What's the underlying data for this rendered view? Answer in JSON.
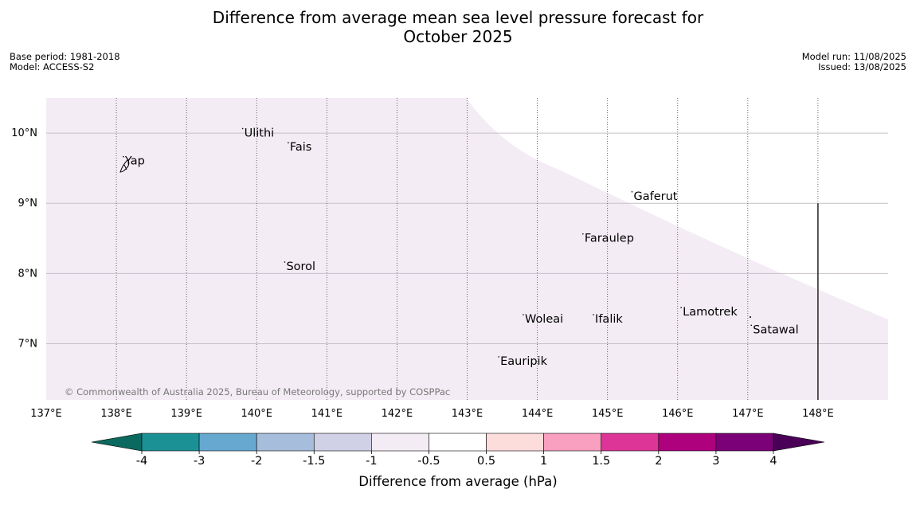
{
  "title": {
    "line1": "Difference from average mean sea level pressure forecast for",
    "line2": "October 2025"
  },
  "meta": {
    "base_period": "Base period: 1981-2018",
    "model": "Model: ACCESS-S2",
    "model_run": "Model run: 11/08/2025",
    "issued": "Issued: 13/08/2025"
  },
  "map": {
    "lon_labels": [
      "137°E",
      "138°E",
      "139°E",
      "140°E",
      "141°E",
      "142°E",
      "143°E",
      "144°E",
      "145°E",
      "146°E",
      "147°E",
      "148°E"
    ],
    "lon_values": [
      137,
      138,
      139,
      140,
      141,
      142,
      143,
      144,
      145,
      146,
      147,
      148
    ],
    "lat_labels": [
      "10°N",
      "9°N",
      "8°N",
      "7°N"
    ],
    "lat_values": [
      10,
      9,
      8,
      7
    ],
    "extent": {
      "lon_min": 137,
      "lon_max": 149,
      "lat_min": 6.2,
      "lat_max": 10.5
    },
    "fill_color": "#f4ecf5",
    "fill_category": "-1 to -0.5",
    "places": [
      {
        "name": "Yap",
        "lon": 138.1,
        "lat": 9.55
      },
      {
        "name": "Ulithi",
        "lon": 139.8,
        "lat": 9.95
      },
      {
        "name": "Fais",
        "lon": 140.45,
        "lat": 9.75
      },
      {
        "name": "Gaferut",
        "lon": 145.35,
        "lat": 9.05
      },
      {
        "name": "Faraulep",
        "lon": 144.65,
        "lat": 8.45
      },
      {
        "name": "Sorol",
        "lon": 140.4,
        "lat": 8.05
      },
      {
        "name": "Lamotrek",
        "lon": 146.05,
        "lat": 7.4
      },
      {
        "name": "Woleai",
        "lon": 143.8,
        "lat": 7.3
      },
      {
        "name": "Ifalik",
        "lon": 144.8,
        "lat": 7.3
      },
      {
        "name": "Satawal",
        "lon": 147.05,
        "lat": 7.15
      },
      {
        "name": "Eauripik",
        "lon": 143.45,
        "lat": 6.7
      }
    ],
    "copyright": "© Commonwealth of Australia 2025, Bureau of Meteorology, supported by COSPPac"
  },
  "colorbar": {
    "label": "Difference from average (hPa)",
    "ticks": [
      "-4",
      "-3",
      "-2",
      "-1.5",
      "-1",
      "-0.5",
      "0.5",
      "1",
      "1.5",
      "2",
      "3",
      "4"
    ],
    "under_color": "#0b6a5f",
    "over_color": "#4a0057",
    "colors": [
      "#1b9196",
      "#66a8cf",
      "#a6bddb",
      "#d0d1e6",
      "#f4ecf5",
      "#ffffff",
      "#fddcdc",
      "#f99fbf",
      "#dd3497",
      "#ae017e",
      "#7a0177"
    ]
  }
}
